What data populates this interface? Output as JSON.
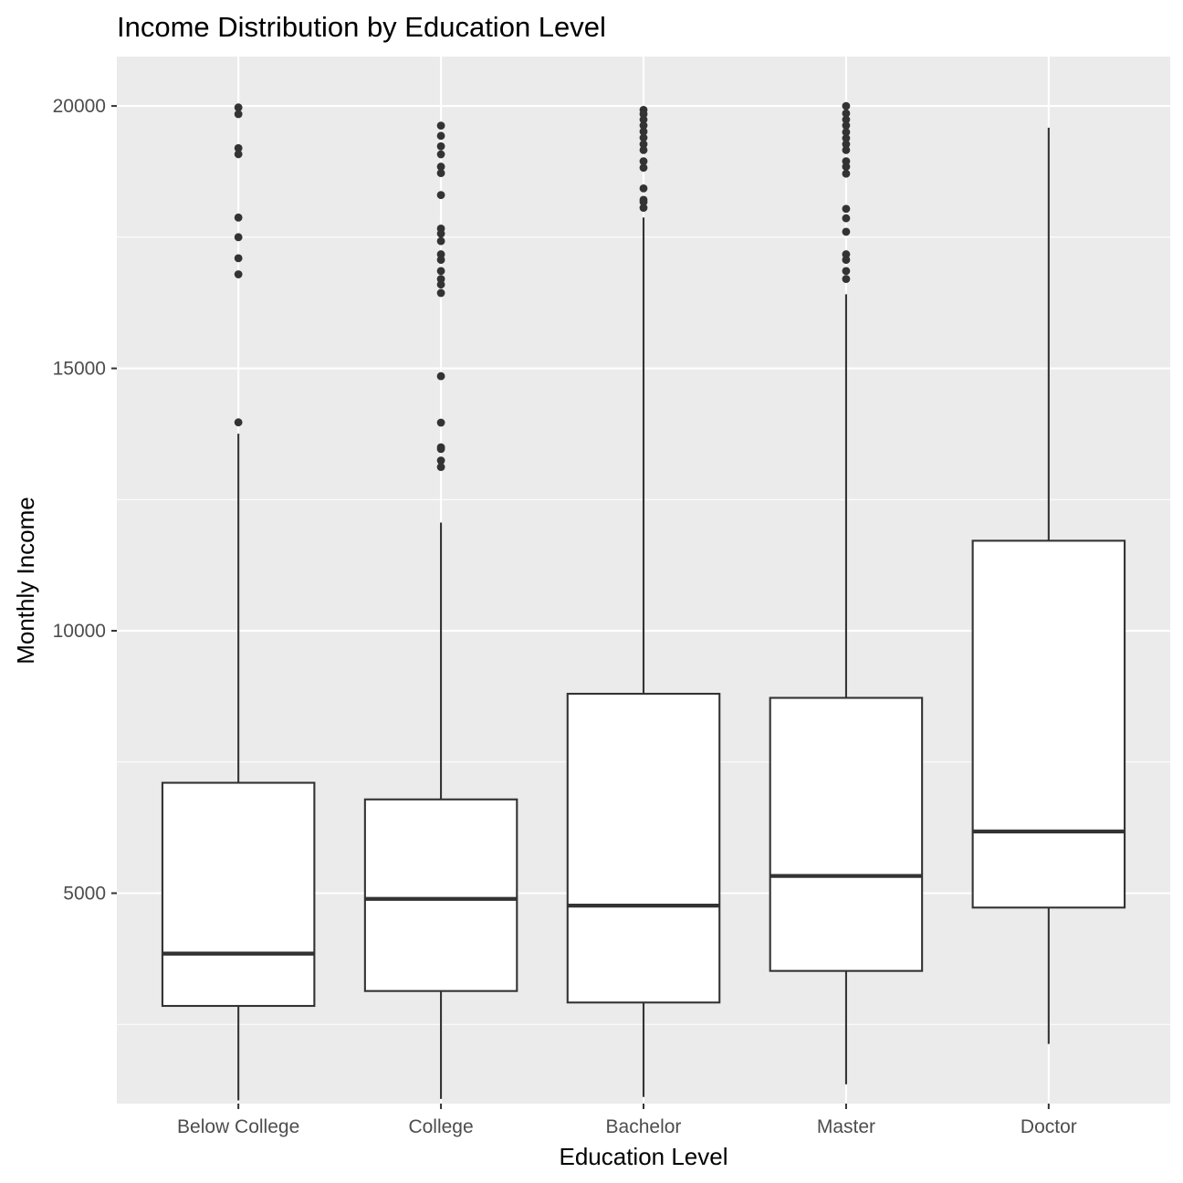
{
  "chart_data": {
    "type": "boxplot",
    "title": "Income Distribution by Education Level",
    "xlabel": "Education Level",
    "ylabel": "Monthly Income",
    "categories": [
      "Below College",
      "College",
      "Bachelor",
      "Master",
      "Doctor"
    ],
    "ylim": [
      991,
      20941
    ],
    "yticks": [
      5000,
      10000,
      15000,
      20000
    ],
    "grid": true,
    "boxes": [
      {
        "category": "Below College",
        "whisker_low": 1051,
        "q1": 2852,
        "median": 3849,
        "q3": 7104,
        "whisker_high": 13756,
        "outliers": [
          19972,
          19845,
          19197,
          19081,
          17874,
          17500,
          17099,
          16792,
          13972
        ]
      },
      {
        "category": "College",
        "whisker_low": 1081,
        "q1": 3136,
        "median": 4891,
        "q3": 6787,
        "whisker_high": 12061,
        "outliers": [
          19626,
          19431,
          19232,
          19079,
          18844,
          18722,
          18303,
          17665,
          17567,
          17426,
          17174,
          17068,
          16856,
          16704,
          16598,
          16437,
          14852,
          13966,
          13496,
          13464,
          13245,
          13120
        ]
      },
      {
        "category": "Bachelor",
        "whisker_low": 1118,
        "q1": 2917,
        "median": 4763,
        "q3": 8800,
        "whisker_high": 17875,
        "outliers": [
          19926,
          19845,
          19740,
          19627,
          19513,
          19394,
          19272,
          19161,
          18947,
          18824,
          18430,
          18213,
          18172,
          18061
        ]
      },
      {
        "category": "Master",
        "whisker_low": 1359,
        "q1": 3519,
        "median": 5329,
        "q3": 8722,
        "whisker_high": 16413,
        "outliers": [
          19999,
          19859,
          19740,
          19627,
          19502,
          19384,
          19272,
          19161,
          18947,
          18844,
          18711,
          18041,
          17861,
          17603,
          17174,
          17068,
          16856,
          16704
        ]
      },
      {
        "category": "Doctor",
        "whisker_low": 2127,
        "q1": 4726,
        "median": 6176,
        "q3": 11716,
        "whisker_high": 19586,
        "outliers": []
      }
    ]
  }
}
